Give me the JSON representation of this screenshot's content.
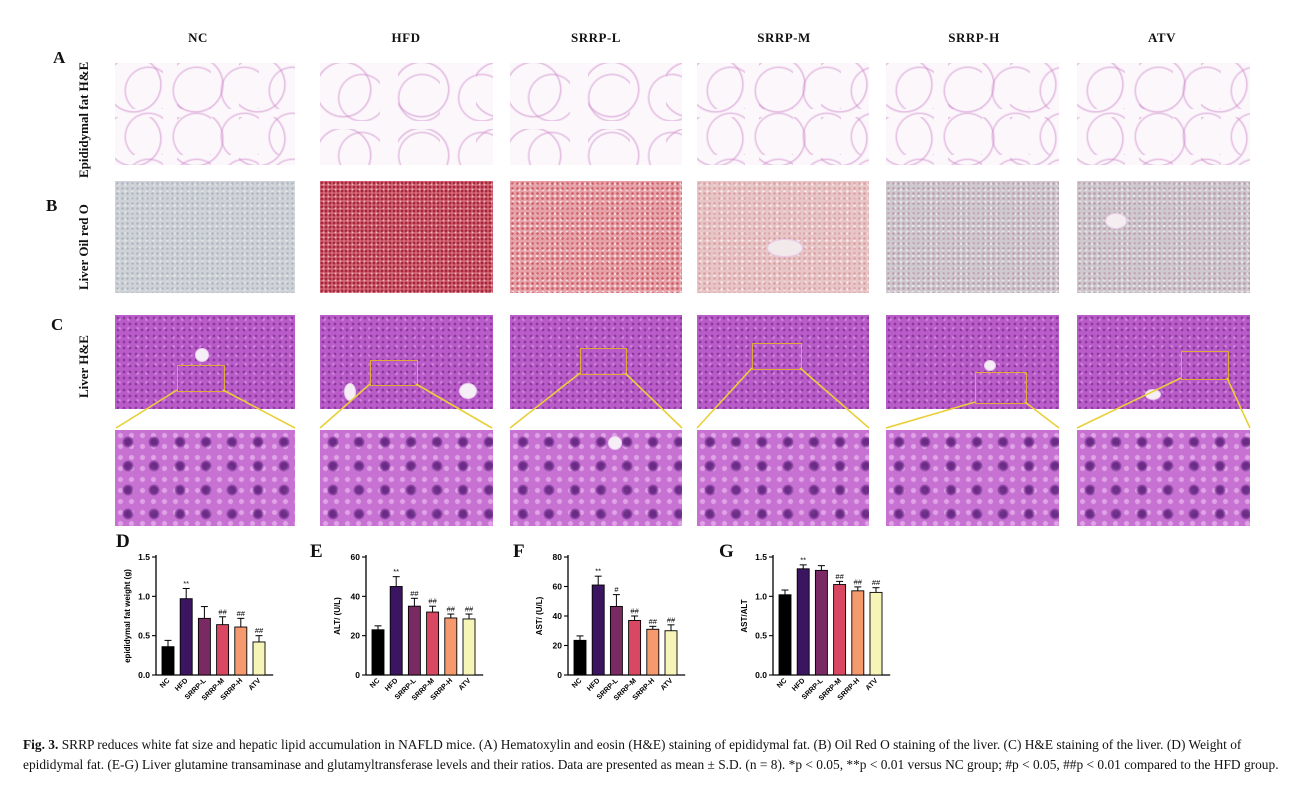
{
  "columns": [
    "NC",
    "HFD",
    "SRRP-L",
    "SRRP-M",
    "SRRP-H",
    "ATV"
  ],
  "rows": {
    "a": {
      "letter": "A",
      "label": "Epididymal fat H&E"
    },
    "b": {
      "letter": "B",
      "label": "Liver Oil red O"
    },
    "c": {
      "letter": "C",
      "label": "Liver H&E"
    }
  },
  "colors": {
    "NC": "#000000",
    "HFD": "#3b1560",
    "SRRP-L": "#7a2a62",
    "SRRP-M": "#d94862",
    "SRRP-H": "#f59a6f",
    "ATV": "#f7f4b8",
    "zoom_line": "#e9cf3a"
  },
  "chart_data": [
    {
      "id": "D",
      "type": "bar",
      "letter": "D",
      "categories": [
        "NC",
        "HFD",
        "SRRP-L",
        "SRRP-M",
        "SRRP-H",
        "ATV"
      ],
      "values": [
        0.36,
        0.97,
        0.72,
        0.64,
        0.61,
        0.42
      ],
      "errors": [
        0.08,
        0.13,
        0.15,
        0.1,
        0.11,
        0.08
      ],
      "annotations": [
        "",
        "**",
        "",
        "##",
        "##",
        "##"
      ],
      "ylabel": "epididymal fat weight  (g)",
      "ylim": [
        0,
        1.5
      ],
      "yticks": [
        "0.0",
        "0.5",
        "1.0",
        "1.5"
      ]
    },
    {
      "id": "E",
      "type": "bar",
      "letter": "E",
      "categories": [
        "NC",
        "HFD",
        "SRRP-L",
        "SRRP-M",
        "SRRP-H",
        "ATV"
      ],
      "values": [
        23,
        45,
        35,
        32,
        29,
        28.5
      ],
      "errors": [
        2,
        5,
        4,
        3,
        2,
        2.5
      ],
      "annotations": [
        "",
        "**",
        "##",
        "##",
        "##",
        "##"
      ],
      "ylabel": "ALT/  (U/L)",
      "ylim": [
        0,
        60
      ],
      "yticks": [
        "0",
        "20",
        "40",
        "60"
      ]
    },
    {
      "id": "F",
      "type": "bar",
      "letter": "F",
      "categories": [
        "NC",
        "HFD",
        "SRRP-L",
        "SRRP-M",
        "SRRP-H",
        "ATV"
      ],
      "values": [
        23.5,
        61,
        46.5,
        37,
        31,
        30
      ],
      "errors": [
        3,
        6,
        8,
        3,
        2,
        4
      ],
      "annotations": [
        "",
        "**",
        "#",
        "##",
        "##",
        "##"
      ],
      "ylabel": "AST/  (U/L)",
      "ylim": [
        0,
        80
      ],
      "yticks": [
        "0",
        "20",
        "40",
        "60",
        "80"
      ]
    },
    {
      "id": "G",
      "type": "bar",
      "letter": "G",
      "categories": [
        "NC",
        "HFD",
        "SRRP-L",
        "SRRP-M",
        "SRRP-H",
        "ATV"
      ],
      "values": [
        1.02,
        1.35,
        1.33,
        1.15,
        1.07,
        1.05
      ],
      "errors": [
        0.06,
        0.05,
        0.06,
        0.04,
        0.05,
        0.06
      ],
      "annotations": [
        "",
        "**",
        "",
        "##",
        "##",
        "##"
      ],
      "ylabel": "AST/ALT",
      "ylim": [
        0,
        1.5
      ],
      "yticks": [
        "0.0",
        "0.5",
        "1.0",
        "1.5"
      ]
    }
  ],
  "caption": {
    "label": "Fig. 3.",
    "text": "SRRP reduces white fat size and hepatic lipid accumulation in NAFLD mice. (A) Hematoxylin and eosin (H&E) staining of epididymal fat. (B) Oil Red O staining of the liver. (C) H&E staining of the liver. (D) Weight of epididymal fat. (E-G) Liver glutamine transaminase and glutamyltransferase levels and their ratios. Data are presented as mean ± S.D. (n = 8). *p < 0.05, **p < 0.01 versus NC group; #p < 0.05, ##p < 0.01 compared to the HFD group."
  }
}
